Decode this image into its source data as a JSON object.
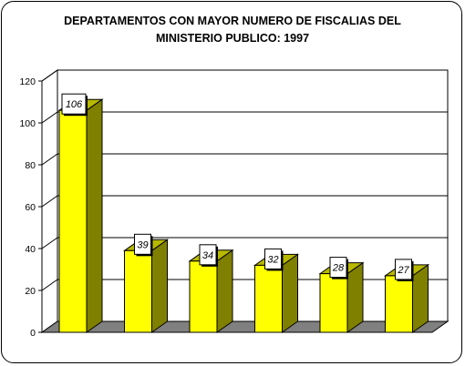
{
  "chart_data": {
    "type": "bar",
    "title_line1": "DEPARTAMENTOS CON MAYOR NUMERO DE FISCALIAS DEL",
    "title_line2": "MINISTERIO PUBLICO: 1997",
    "categories": [
      "",
      "",
      "",
      "",
      "",
      ""
    ],
    "values": [
      106,
      39,
      34,
      32,
      28,
      27
    ],
    "ylim": [
      0,
      120
    ],
    "yticks": [
      0,
      20,
      40,
      60,
      80,
      100,
      120
    ],
    "grid": true,
    "legend": "none",
    "style": "3d-bar",
    "colors": {
      "bar_front": "#ffff00",
      "bar_side": "#808000",
      "bar_top": "#b8b800",
      "floor": "#808080",
      "wall": "#ffffff"
    }
  }
}
